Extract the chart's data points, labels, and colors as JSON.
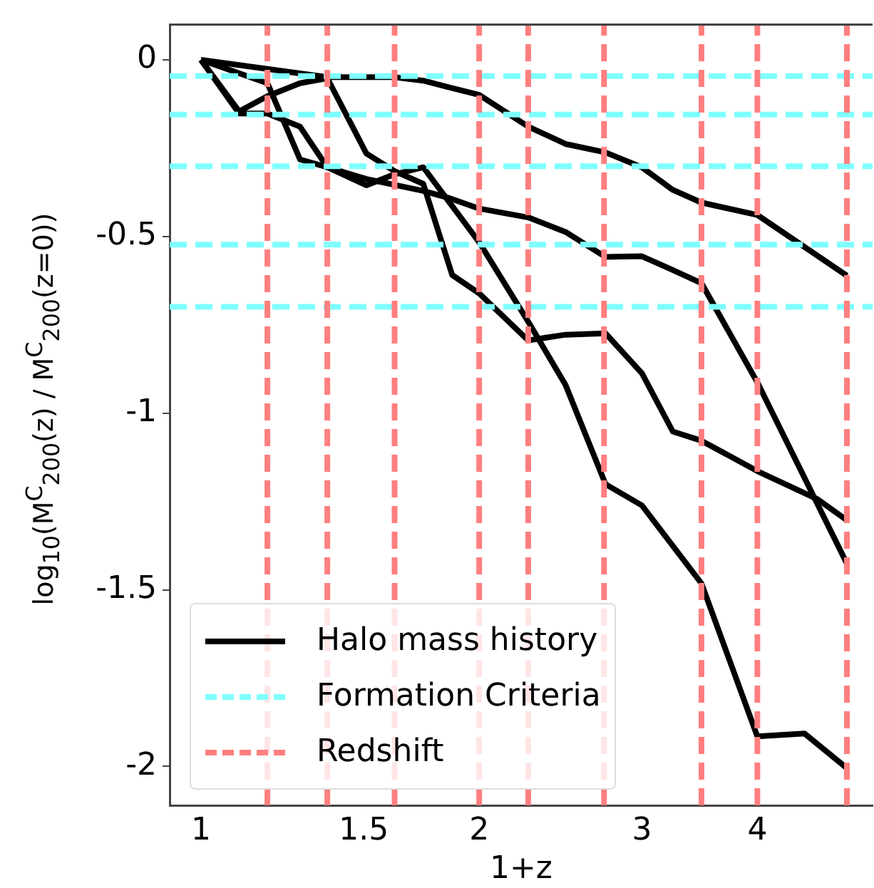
{
  "chart_data": {
    "type": "line",
    "xlabel": "1+z",
    "ylabel": "log$_{10}$(M$^{C}$$_{200}$(z) / M$^{C}$$_{200}$(z=0))",
    "log": "x",
    "xlim": [
      0.925,
      5.33
    ],
    "xticks": [
      1,
      1.5,
      2,
      3,
      4
    ],
    "ylim": [
      -2.11,
      0.1
    ],
    "yticks": [
      -2,
      -1.5,
      -1,
      -0.5,
      0
    ],
    "legend": "bottom left",
    "series": [
      {
        "name": "Halo mass history",
        "color": "#000000",
        "x": [
          1,
          1.37,
          1.62,
          1.74,
          1.85,
          2,
          2.26,
          2.48,
          2.74,
          3,
          3.24,
          3.48,
          4,
          5
        ],
        "values": [
          0,
          -0.049,
          -0.049,
          -0.059,
          -0.077,
          -0.099,
          -0.189,
          -0.238,
          -0.262,
          -0.304,
          -0.368,
          -0.404,
          -0.439,
          -0.611
        ]
      },
      {
        "color": "#000000",
        "x": [
          1,
          1.1,
          1.18,
          1.28,
          1.37,
          1.51,
          1.62,
          1.74,
          1.87,
          2,
          2.26,
          2.48,
          2.74,
          3,
          3.24,
          3.48,
          4,
          4.65,
          5
        ],
        "values": [
          0,
          -0.146,
          -0.103,
          -0.066,
          -0.052,
          -0.265,
          -0.315,
          -0.351,
          -0.609,
          -0.661,
          -0.794,
          -0.778,
          -0.774,
          -0.887,
          -1.052,
          -1.078,
          -1.164,
          -1.244,
          -1.303
        ]
      },
      {
        "color": "#000000",
        "x": [
          1,
          1.18,
          1.28,
          1.37,
          1.51,
          1.62,
          1.74,
          2,
          2.26,
          2.48,
          2.74,
          3,
          3.48,
          4,
          4.5,
          5
        ],
        "values": [
          0,
          -0.066,
          -0.282,
          -0.304,
          -0.355,
          -0.324,
          -0.304,
          -0.516,
          -0.741,
          -0.92,
          -1.201,
          -1.261,
          -1.482,
          -1.915,
          -1.907,
          -2.005
        ]
      },
      {
        "color": "#000000",
        "x": [
          1,
          1.1,
          1.18,
          1.28,
          1.37,
          1.51,
          1.74,
          1.85,
          2,
          2.26,
          2.48,
          2.74,
          3,
          3.24,
          3.48,
          4,
          5
        ],
        "values": [
          0,
          -0.152,
          -0.152,
          -0.189,
          -0.304,
          -0.337,
          -0.371,
          -0.39,
          -0.421,
          -0.446,
          -0.487,
          -0.558,
          -0.556,
          -0.595,
          -0.632,
          -0.913,
          -1.426
        ]
      }
    ],
    "ref_lines": [
      {
        "axis": "y",
        "value": -0.046,
        "label": "Formation Criteria",
        "color": "#7fffff",
        "line_style": "dashed"
      },
      {
        "axis": "y",
        "value": -0.155,
        "color": "#7fffff",
        "line_style": "dashed"
      },
      {
        "axis": "y",
        "value": -0.301,
        "color": "#7fffff",
        "line_style": "dashed"
      },
      {
        "axis": "y",
        "value": -0.523,
        "color": "#7fffff",
        "line_style": "dashed"
      },
      {
        "axis": "y",
        "value": -0.699,
        "color": "#7fffff",
        "line_style": "dashed"
      },
      {
        "axis": "x",
        "value": 1.18,
        "label": "Redshift",
        "color": "#ff7f7f",
        "line_style": "dashed"
      },
      {
        "axis": "x",
        "value": 1.37,
        "color": "#ff7f7f",
        "line_style": "dashed"
      },
      {
        "axis": "x",
        "value": 1.62,
        "color": "#ff7f7f",
        "line_style": "dashed"
      },
      {
        "axis": "x",
        "value": 2,
        "color": "#ff7f7f",
        "line_style": "dashed"
      },
      {
        "axis": "x",
        "value": 2.26,
        "color": "#ff7f7f",
        "line_style": "dashed"
      },
      {
        "axis": "x",
        "value": 2.73,
        "color": "#ff7f7f",
        "line_style": "dashed"
      },
      {
        "axis": "x",
        "value": 3.48,
        "color": "#ff7f7f",
        "line_style": "dashed"
      },
      {
        "axis": "x",
        "value": 4,
        "color": "#ff7f7f",
        "line_style": "dashed"
      },
      {
        "axis": "x",
        "value": 5,
        "color": "#ff7f7f",
        "line_style": "dashed"
      }
    ]
  }
}
